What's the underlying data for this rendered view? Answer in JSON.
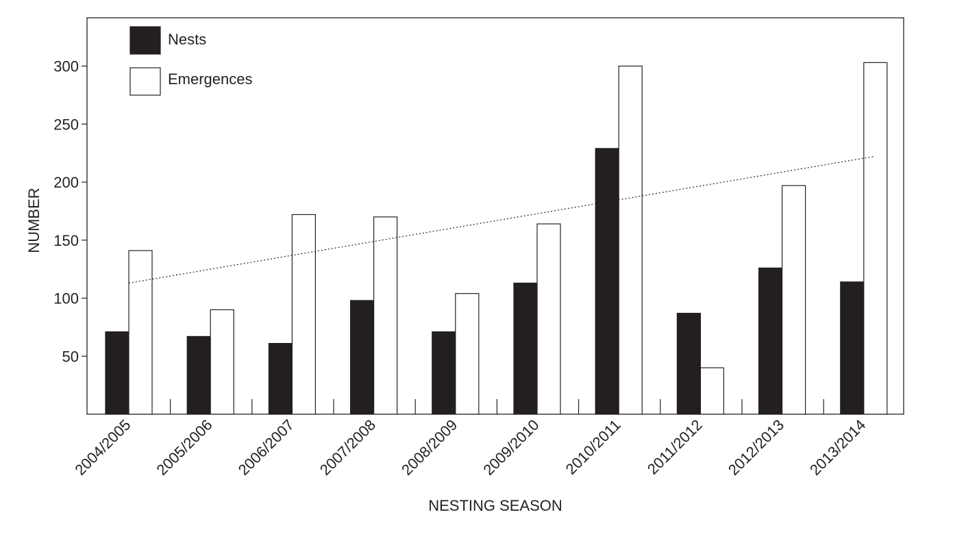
{
  "colors": {
    "nests": "#231f20",
    "emergences": "#ffffff",
    "stroke": "#231f20"
  },
  "chart_data": {
    "type": "bar",
    "title": "",
    "xlabel": "NESTING SEASON",
    "ylabel": "NUMBER",
    "ylim": [
      0,
      340
    ],
    "yticks": [
      50,
      100,
      150,
      200,
      250,
      300
    ],
    "grid": false,
    "legend": "top-left",
    "categories": [
      "2004/2005",
      "2005/2006",
      "2006/2007",
      "2007/2008",
      "2008/2009",
      "2009/2010",
      "2010/2011",
      "2011/2012",
      "2012/2013",
      "2013/2014"
    ],
    "series": [
      {
        "name": "Nests",
        "values": [
          71,
          67,
          61,
          98,
          71,
          113,
          229,
          87,
          126,
          114
        ]
      },
      {
        "name": "Emergences",
        "values": [
          141,
          90,
          172,
          170,
          104,
          164,
          300,
          40,
          197,
          303
        ]
      }
    ],
    "trendline": {
      "series": "Emergences",
      "style": "dotted",
      "start": 113,
      "end": 222
    }
  }
}
